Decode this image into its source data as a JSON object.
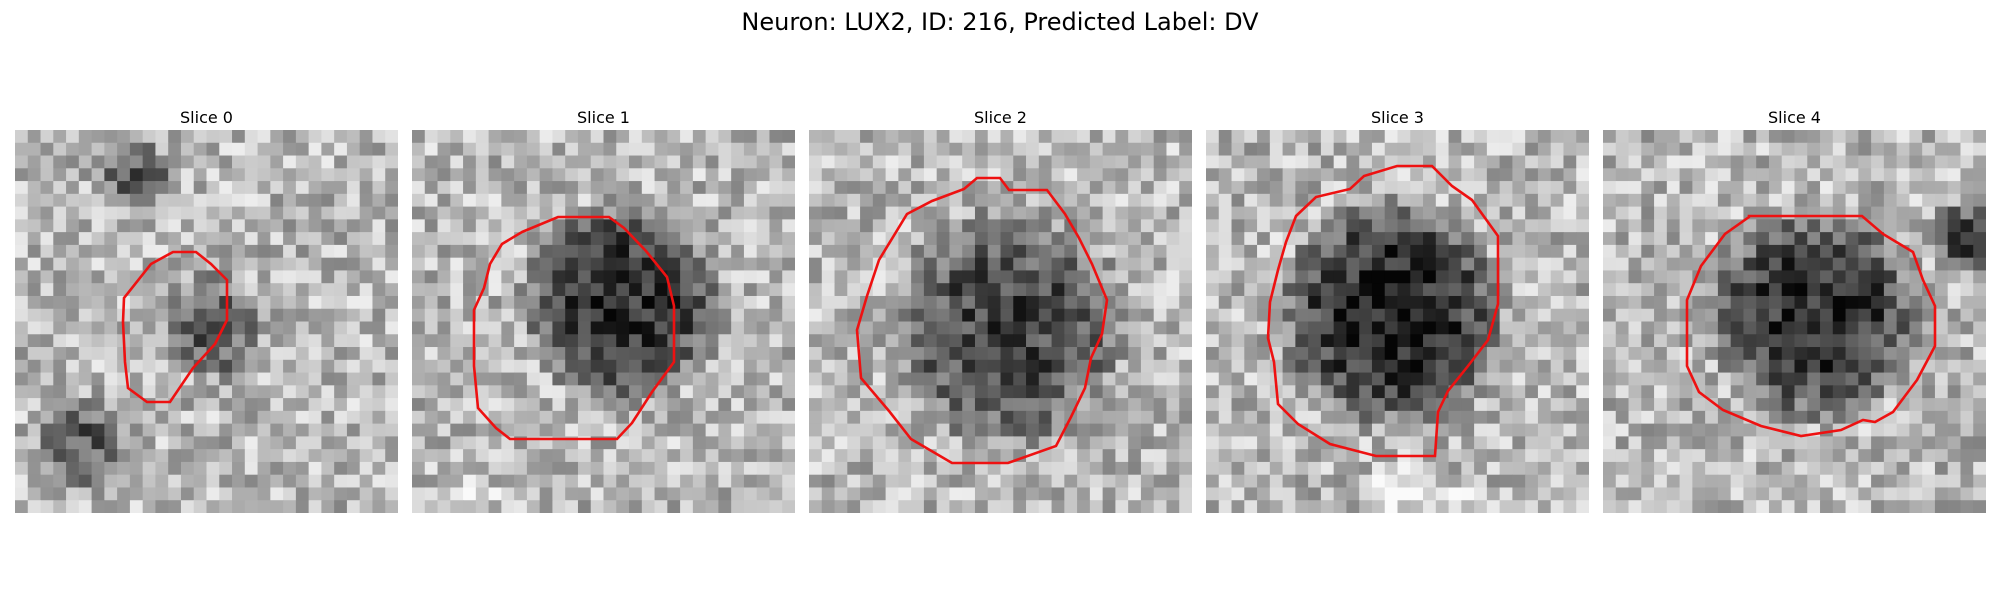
{
  "figure": {
    "title": "Neuron: LUX2, ID: 216, Predicted Label: DV"
  },
  "panels": [
    {
      "title": "Slice 0",
      "image": "grayscale microscopy patch, small dim roi",
      "contour_color": "#ee1111"
    },
    {
      "title": "Slice 1",
      "image": "grayscale microscopy patch, dark cell body",
      "contour_color": "#ee1111"
    },
    {
      "title": "Slice 2",
      "image": "grayscale microscopy patch, dark cell body",
      "contour_color": "#ee1111"
    },
    {
      "title": "Slice 3",
      "image": "grayscale microscopy patch, dark cell body",
      "contour_color": "#ee1111"
    },
    {
      "title": "Slice 4",
      "image": "grayscale microscopy patch, dark cell body",
      "contour_color": "#ee1111"
    }
  ]
}
